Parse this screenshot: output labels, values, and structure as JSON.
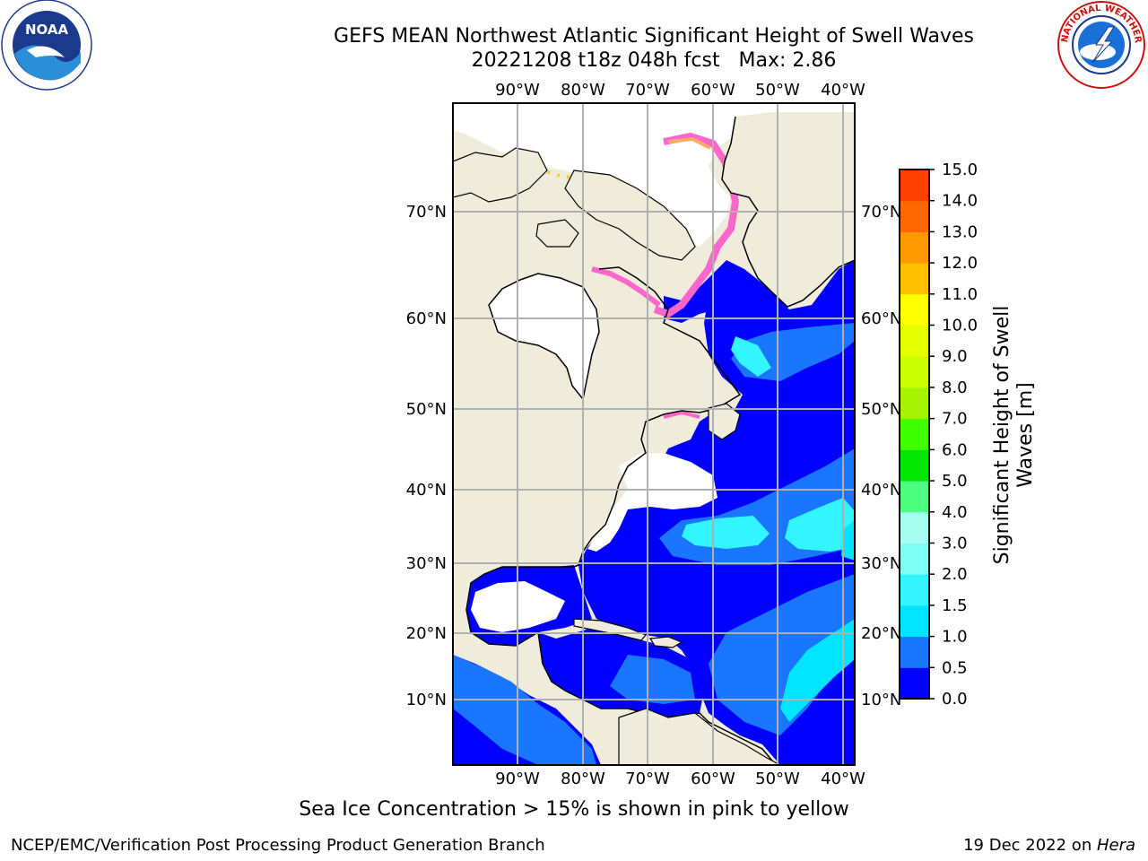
{
  "title": {
    "line1": "GEFS MEAN Northwest Atlantic Significant Height of Swell Waves",
    "line2": "20221208 t18z 048h fcst   Max: 2.86"
  },
  "logos": {
    "left": {
      "icon": "noaa-logo",
      "text": "NOAA"
    },
    "right": {
      "icon": "nws-logo",
      "text": "NATIONAL WEATHER SERVICE"
    }
  },
  "map": {
    "lon_labels": [
      "90°W",
      "80°W",
      "70°W",
      "60°W",
      "50°W",
      "40°W"
    ],
    "lat_labels": [
      "70°N",
      "60°N",
      "50°N",
      "40°N",
      "30°N",
      "20°N",
      "10°N"
    ],
    "colors": {
      "land": "#efecdc",
      "ocean_low": "#0000ff",
      "ocean_mid": "#1a75ff",
      "ice": "#ff66cc"
    }
  },
  "colorbar": {
    "title": "Significant Height of Swell Waves [m]",
    "title_line1": "Significant Height of Swell",
    "title_line2": "Waves [m]",
    "ticks": [
      "0.0",
      "0.5",
      "1.0",
      "1.5",
      "2.0",
      "3.0",
      "4.0",
      "5.0",
      "6.0",
      "7.0",
      "8.0",
      "9.0",
      "10.0",
      "11.0",
      "12.0",
      "13.0",
      "14.0",
      "15.0"
    ],
    "colors": [
      "#0000ff",
      "#1a75ff",
      "#00e5ff",
      "#33f5ff",
      "#80fff5",
      "#a6fff0",
      "#4dff80",
      "#00e600",
      "#40ff00",
      "#a6f200",
      "#ccff00",
      "#e6ff00",
      "#ffff00",
      "#ffc000",
      "#ff9900",
      "#ff6600",
      "#ff4000",
      "#ff0000"
    ]
  },
  "footnote": "Sea Ice Concentration > 15% is shown in pink to yellow",
  "credit": "NCEP/EMC/Verification Post Processing Product Generation Branch",
  "date": {
    "text": "19 Dec 2022 on ",
    "host": "Hera"
  }
}
